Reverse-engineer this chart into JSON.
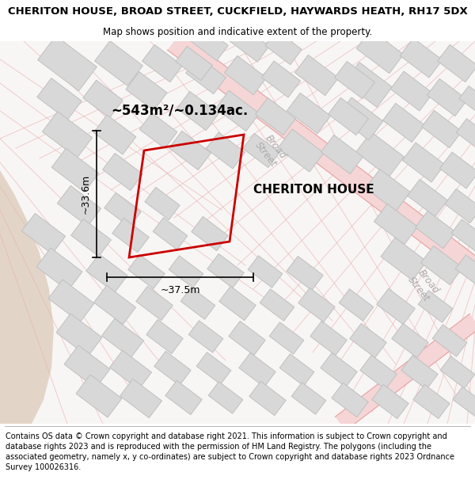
{
  "title": "CHERITON HOUSE, BROAD STREET, CUCKFIELD, HAYWARDS HEATH, RH17 5DX",
  "subtitle": "Map shows position and indicative extent of the property.",
  "footer": "Contains OS data © Crown copyright and database right 2021. This information is subject to Crown copyright and database rights 2023 and is reproduced with the permission of HM Land Registry. The polygons (including the associated geometry, namely x, y co-ordinates) are subject to Crown copyright and database rights 2023 Ordnance Survey 100026316.",
  "area_text": "~543m²/~0.134ac.",
  "property_label": "CHERITON HOUSE",
  "dim_width": "~37.5m",
  "dim_height": "~33.6m",
  "title_fontsize": 9.5,
  "subtitle_fontsize": 8.5,
  "footer_fontsize": 7.0,
  "map_bg": "#f7f4f1",
  "tan_area_color": "#e8ddd3",
  "road_fill_color": "#f5d5d5",
  "road_line_color": "#e8a0a0",
  "building_color": "#d8d8d8",
  "building_edge_color": "#c0c0c0",
  "property_edge_color": "#cc0000",
  "street_label_color": "#aaaaaa"
}
